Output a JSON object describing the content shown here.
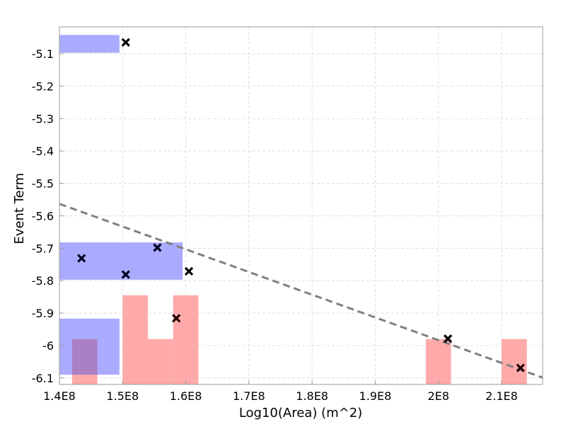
{
  "chart_data": {
    "type": "scatter",
    "xlabel": "Log10(Area) (m^2)",
    "ylabel": "Event Term",
    "xlim": [
      140000000,
      216500000
    ],
    "ylim": [
      -6.12,
      -5.017
    ],
    "x_ticks": [
      {
        "value": 140000000,
        "label": "1.4E8"
      },
      {
        "value": 150000000,
        "label": "1.5E8"
      },
      {
        "value": 160000000,
        "label": "1.6E8"
      },
      {
        "value": 170000000,
        "label": "1.7E8"
      },
      {
        "value": 180000000,
        "label": "1.8E8"
      },
      {
        "value": 190000000,
        "label": "1.9E8"
      },
      {
        "value": 200000000,
        "label": "2E8"
      },
      {
        "value": 210000000,
        "label": "2.1E8"
      }
    ],
    "y_ticks": [
      {
        "value": -5.1,
        "label": "-5.1"
      },
      {
        "value": -5.2,
        "label": "-5.2"
      },
      {
        "value": -5.3,
        "label": "-5.3"
      },
      {
        "value": -5.4,
        "label": "-5.4"
      },
      {
        "value": -5.5,
        "label": "-5.5"
      },
      {
        "value": -5.6,
        "label": "-5.6"
      },
      {
        "value": -5.7,
        "label": "-5.7"
      },
      {
        "value": -5.8,
        "label": "-5.8"
      },
      {
        "value": -5.9,
        "label": "-5.9"
      },
      {
        "value": -6,
        "label": "-6"
      },
      {
        "value": -6.1,
        "label": "-6.1"
      }
    ],
    "grid": true,
    "colors": {
      "blue_band": "#aaaaff",
      "red_band": "#ffaaaa",
      "overlap": "#aa7fc4",
      "marker": "#000000",
      "fit_line": "#808080",
      "grid": "#dddddd",
      "frame": "#999999"
    },
    "blue_regions": [
      {
        "x": [
          140000000,
          149500000
        ],
        "y": [
          -5.097,
          -5.042
        ]
      },
      {
        "x": [
          140000000,
          159500000
        ],
        "y": [
          -5.797,
          -5.682
        ]
      },
      {
        "x": [
          140000000,
          149500000
        ],
        "y": [
          -6.09,
          -5.917
        ]
      }
    ],
    "red_bins": [
      {
        "x": [
          142000000,
          146000000
        ],
        "y": [
          -6.12,
          -5.98
        ]
      },
      {
        "x": [
          150000000,
          154000000
        ],
        "y": [
          -6.12,
          -5.845
        ]
      },
      {
        "x": [
          154000000,
          158000000
        ],
        "y": [
          -6.12,
          -5.98
        ]
      },
      {
        "x": [
          158000000,
          162000000
        ],
        "y": [
          -6.12,
          -5.845
        ]
      },
      {
        "x": [
          198000000,
          202000000
        ],
        "y": [
          -6.12,
          -5.98
        ]
      },
      {
        "x": [
          210000000,
          214000000
        ],
        "y": [
          -6.12,
          -5.98
        ]
      }
    ],
    "points": [
      {
        "x": 150500000,
        "y": -5.065,
        "color": "#000000"
      },
      {
        "x": 143500000,
        "y": -5.731,
        "color": "#000022"
      },
      {
        "x": 150500000,
        "y": -5.781,
        "color": "#000022"
      },
      {
        "x": 155500000,
        "y": -5.698,
        "color": "#000022"
      },
      {
        "x": 160500000,
        "y": -5.771,
        "color": "#000000"
      },
      {
        "x": 158500000,
        "y": -5.916,
        "color": "#220000"
      },
      {
        "x": 201500000,
        "y": -5.979,
        "color": "#000000"
      },
      {
        "x": 213000000,
        "y": -6.069,
        "color": "#220000"
      }
    ],
    "fit_line": {
      "x": [
        140000000,
        216500000
      ],
      "y": [
        -5.563,
        -6.099
      ]
    }
  }
}
